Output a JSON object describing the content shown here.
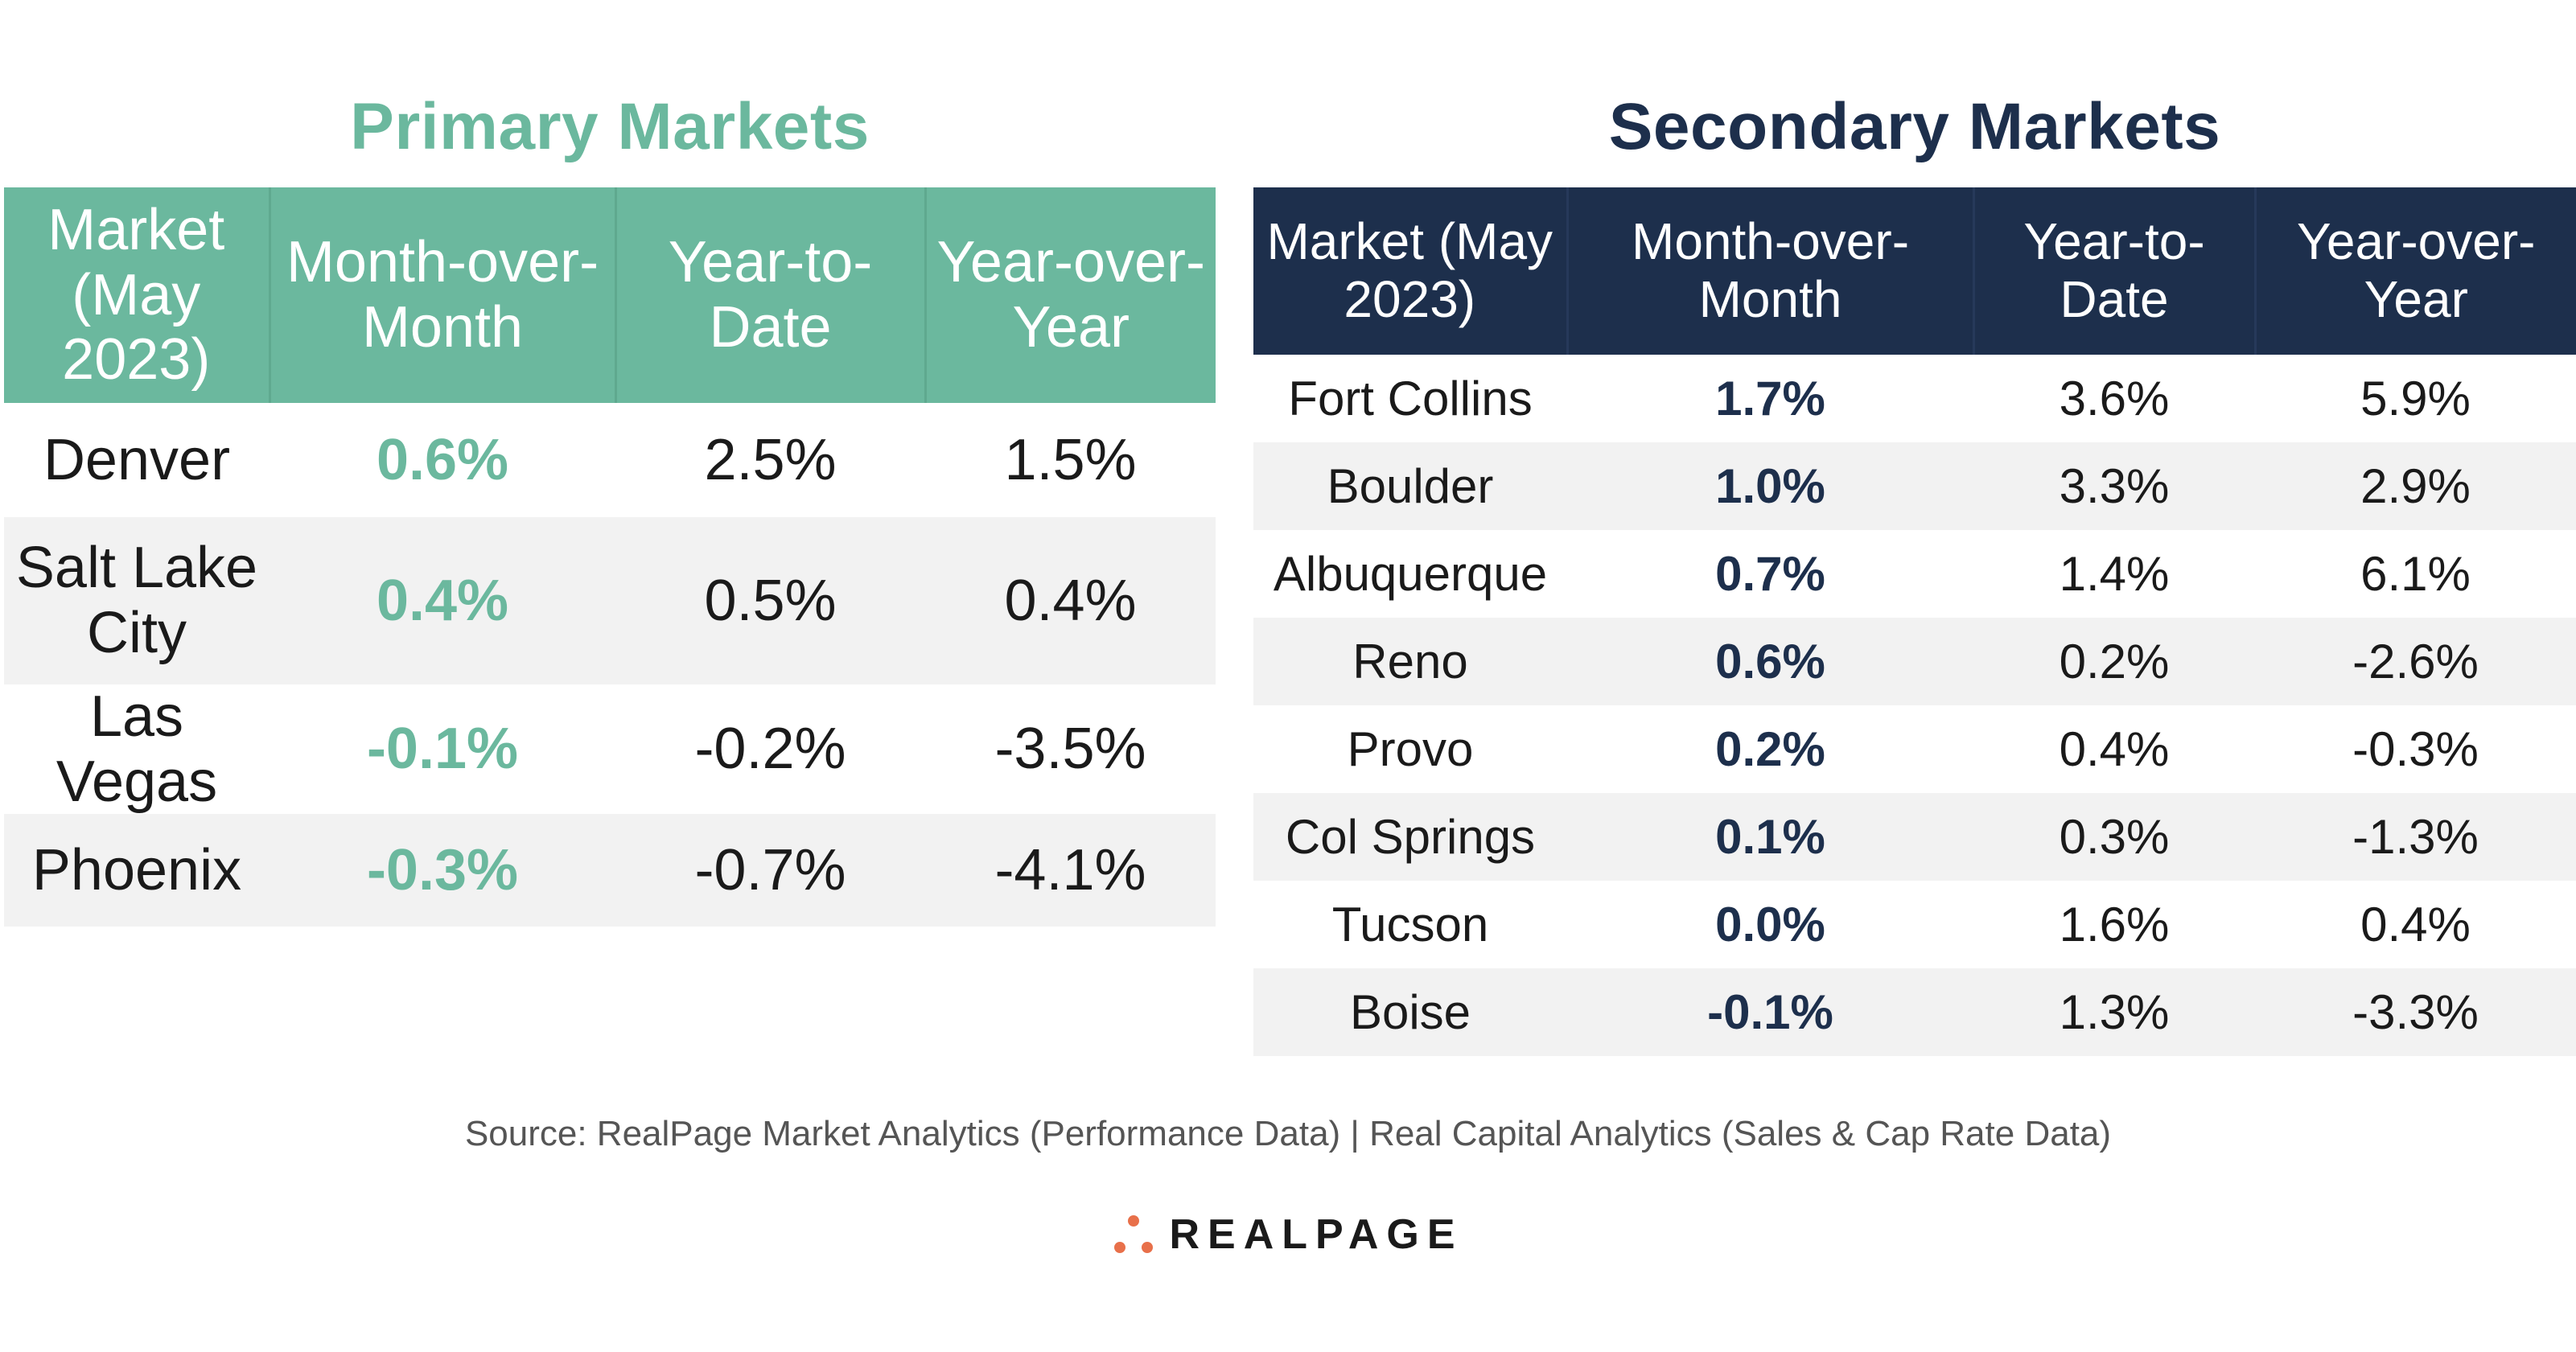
{
  "chart_data": [
    {
      "type": "table",
      "title": "Primary Markets",
      "columns": [
        "Market (May 2023)",
        "Month-over-Month",
        "Year-to-Date",
        "Year-over-Year"
      ],
      "rows": [
        [
          "Denver",
          "0.6%",
          "2.5%",
          "1.5%"
        ],
        [
          "Salt Lake City",
          "0.4%",
          "0.5%",
          "0.4%"
        ],
        [
          "Las Vegas",
          "-0.1%",
          "-0.2%",
          "-3.5%"
        ],
        [
          "Phoenix",
          "-0.3%",
          "-0.7%",
          "-4.1%"
        ]
      ]
    },
    {
      "type": "table",
      "title": "Secondary Markets",
      "columns": [
        "Market (May 2023)",
        "Month-over-Month",
        "Year-to-Date",
        "Year-over-Year"
      ],
      "rows": [
        [
          "Fort Collins",
          "1.7%",
          "3.6%",
          "5.9%"
        ],
        [
          "Boulder",
          "1.0%",
          "3.3%",
          "2.9%"
        ],
        [
          "Albuquerque",
          "0.7%",
          "1.4%",
          "6.1%"
        ],
        [
          "Reno",
          "0.6%",
          "0.2%",
          "-2.6%"
        ],
        [
          "Provo",
          "0.2%",
          "0.4%",
          "-0.3%"
        ],
        [
          "Col Springs",
          "0.1%",
          "0.3%",
          "-1.3%"
        ],
        [
          "Tucson",
          "0.0%",
          "1.6%",
          "0.4%"
        ],
        [
          "Boise",
          "-0.1%",
          "1.3%",
          "-3.3%"
        ]
      ]
    }
  ],
  "colors": {
    "primary_accent": "#6bb89e",
    "secondary_accent": "#1d2f4c",
    "row_alt": "#f2f2f2",
    "logo_dots": "#e8704a"
  },
  "footer": {
    "source": "Source: RealPage Market Analytics (Performance Data) | Real Capital Analytics (Sales & Cap Rate Data)",
    "logo_text": "REALPAGE",
    "logo_icon": "three-dot-logo-icon"
  }
}
